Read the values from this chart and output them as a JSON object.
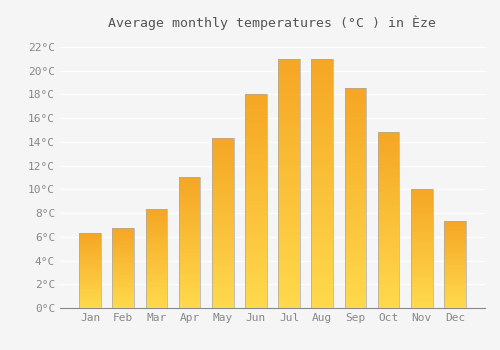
{
  "title": "Average monthly temperatures (°C ) in Èze",
  "months": [
    "Jan",
    "Feb",
    "Mar",
    "Apr",
    "May",
    "Jun",
    "Jul",
    "Aug",
    "Sep",
    "Oct",
    "Nov",
    "Dec"
  ],
  "values": [
    6.3,
    6.7,
    8.3,
    11.0,
    14.3,
    18.0,
    21.0,
    21.0,
    18.5,
    14.8,
    10.0,
    7.3
  ],
  "bar_color_top": "#F5A623",
  "bar_color_bottom": "#FFD966",
  "bar_edge_color": "#AAAAAA",
  "background_color": "#F5F5F5",
  "grid_color": "#FFFFFF",
  "ylim": [
    0,
    23
  ],
  "yticks": [
    0,
    2,
    4,
    6,
    8,
    10,
    12,
    14,
    16,
    18,
    20,
    22
  ],
  "title_fontsize": 9.5,
  "tick_fontsize": 8,
  "tick_color": "#888888"
}
